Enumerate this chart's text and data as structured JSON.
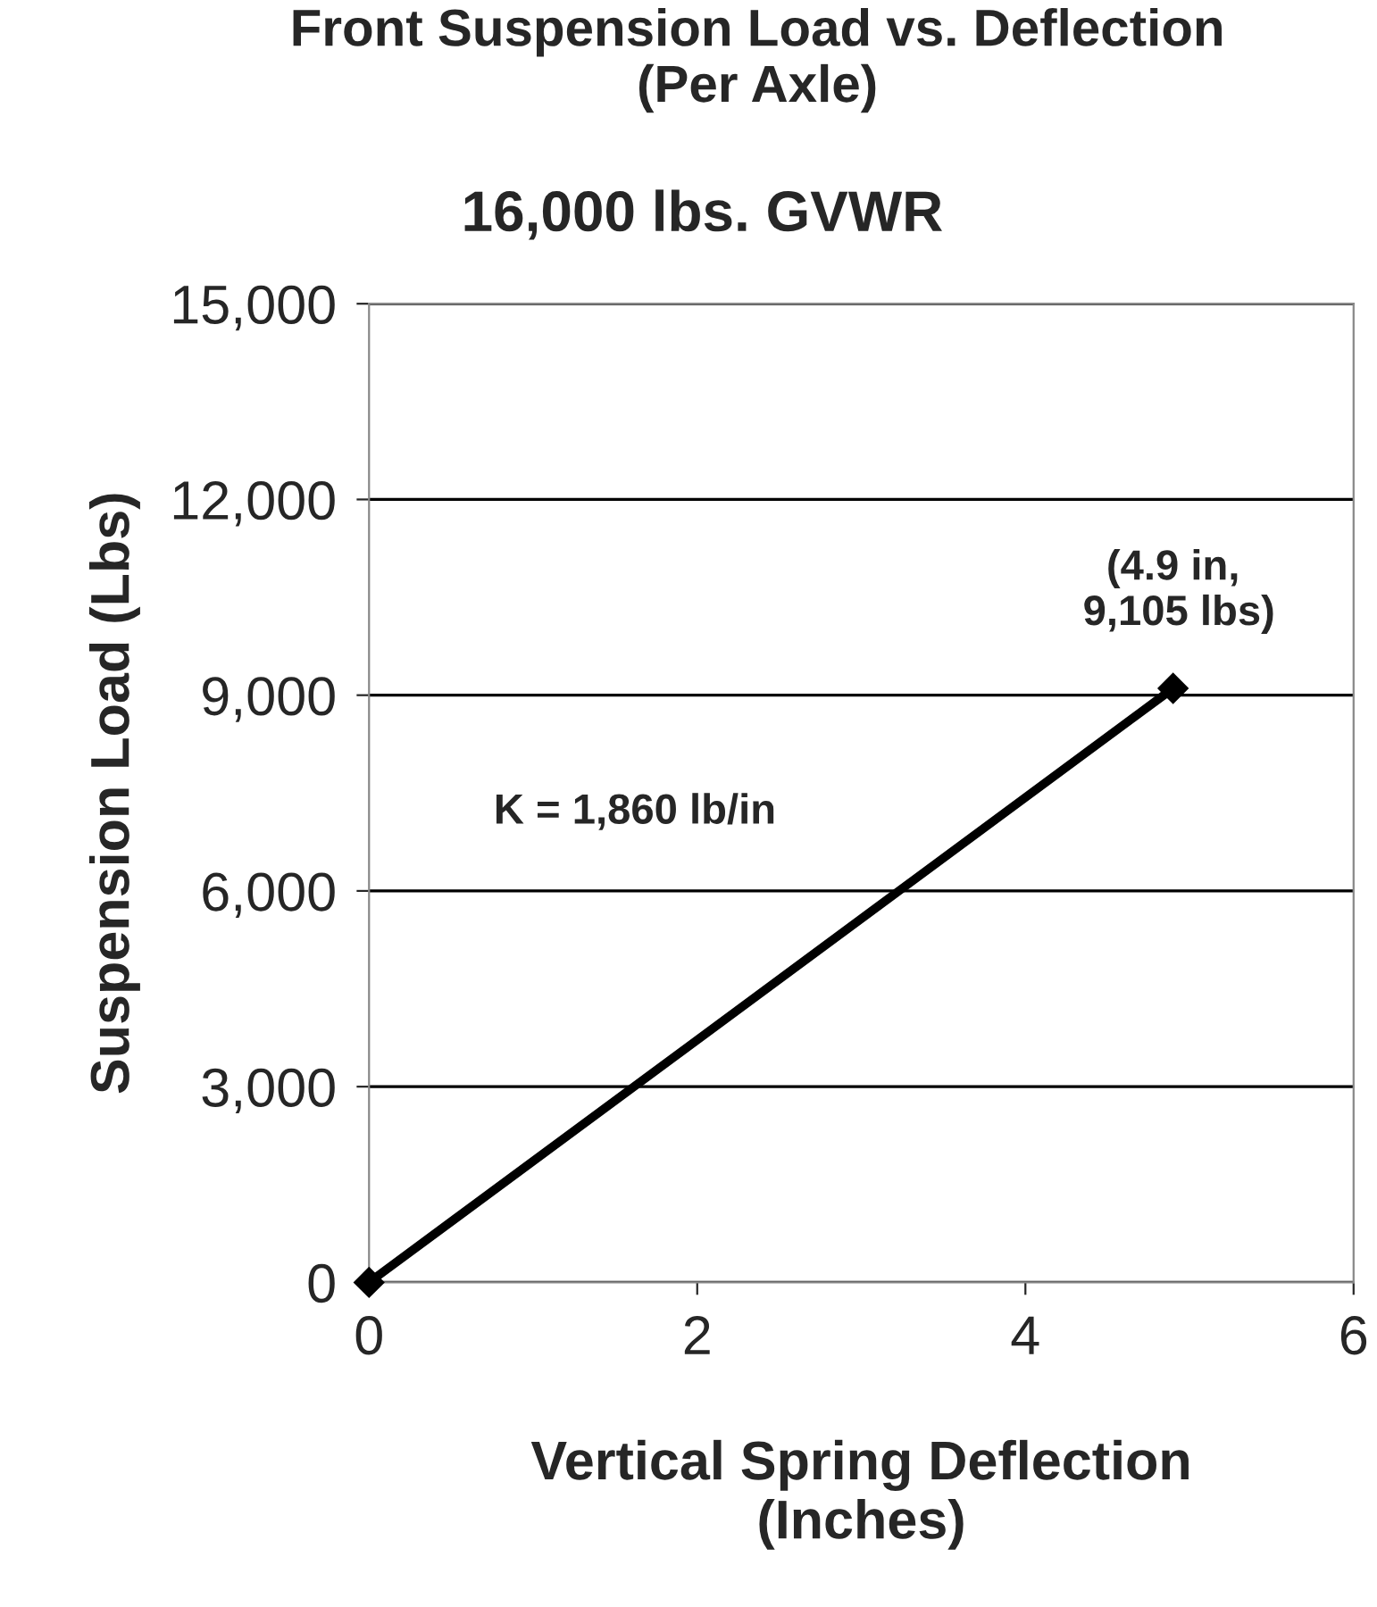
{
  "chart_data": {
    "type": "line",
    "title": "Front Suspension Load vs. Deflection\n(Per Axle)",
    "subtitle": "16,000 lbs. GVWR",
    "xlabel": "Vertical Spring Deflection\n(Inches)",
    "ylabel": "Suspension Load (Lbs)",
    "x": [
      0,
      4.9
    ],
    "series": [
      {
        "color": "#000000",
        "values": [
          0,
          9105
        ]
      }
    ],
    "xlim": [
      0,
      6
    ],
    "xticks": [
      0,
      2,
      4,
      6
    ],
    "ylim": [
      0,
      15000
    ],
    "yticks": [
      {
        "value": 0,
        "label": "0"
      },
      {
        "value": 3000,
        "label": "3,000"
      },
      {
        "value": 6000,
        "label": "6,000"
      },
      {
        "value": 9000,
        "label": "9,000"
      },
      {
        "value": 12000,
        "label": "12,000"
      },
      {
        "value": 15000,
        "label": "15,000"
      }
    ],
    "grid": "y",
    "marker": "diamond",
    "line_style": "solid",
    "legend": false,
    "annotations": [
      {
        "text": "(4.9 in,\n 9,105 lbs)",
        "x": 4.9,
        "y": 9105
      },
      "K = 1,860 lb/in"
    ]
  }
}
